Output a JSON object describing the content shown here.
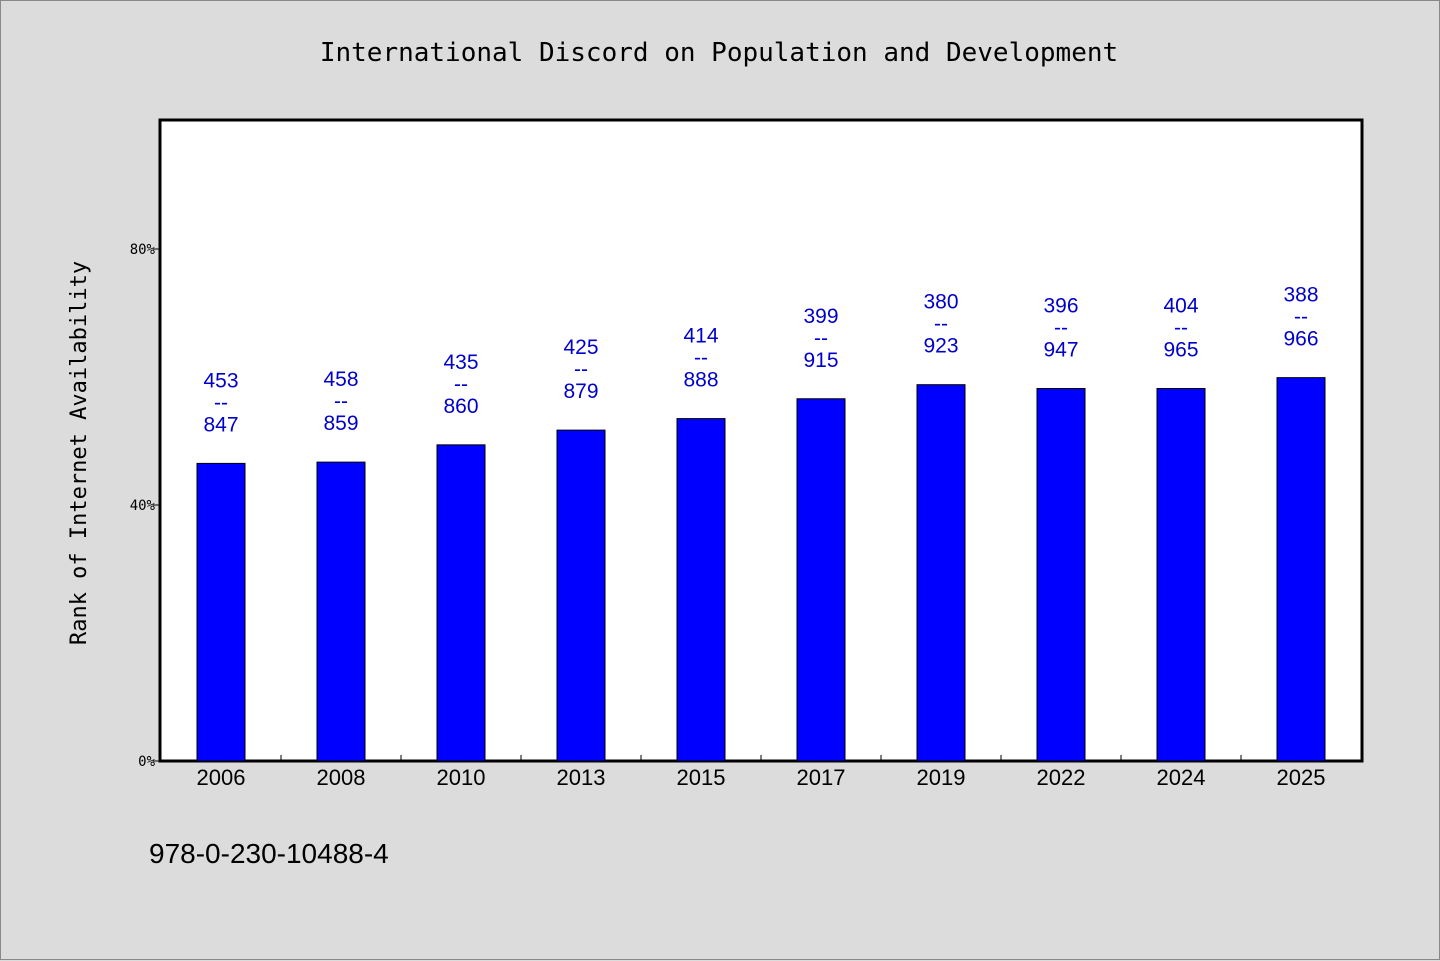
{
  "chart_data": {
    "type": "bar",
    "title": "International Discord on Population and Development",
    "xlabel": "",
    "ylabel": "Rank of Internet Availability",
    "categories": [
      "2006",
      "2008",
      "2010",
      "2013",
      "2015",
      "2017",
      "2019",
      "2022",
      "2024",
      "2025"
    ],
    "values": [
      46.5,
      46.7,
      49.4,
      51.7,
      53.5,
      56.6,
      58.8,
      58.2,
      58.2,
      59.9
    ],
    "data_labels": [
      [
        "453",
        "--",
        "847"
      ],
      [
        "458",
        "--",
        "859"
      ],
      [
        "435",
        "--",
        "860"
      ],
      [
        "425",
        "--",
        "879"
      ],
      [
        "414",
        "--",
        "888"
      ],
      [
        "399",
        "--",
        "915"
      ],
      [
        "380",
        "--",
        "923"
      ],
      [
        "396",
        "--",
        "947"
      ],
      [
        "404",
        "--",
        "965"
      ],
      [
        "388",
        "--",
        "966"
      ]
    ],
    "yticks": [
      0,
      40,
      80
    ],
    "ytick_labels": [
      "0%",
      "40%",
      "80%"
    ],
    "ylim": [
      0,
      100
    ],
    "grid": false,
    "bar_color": "#0000ff",
    "label_color": "#0000cc"
  },
  "footer": {
    "isbn": "978-0-230-10488-4"
  }
}
